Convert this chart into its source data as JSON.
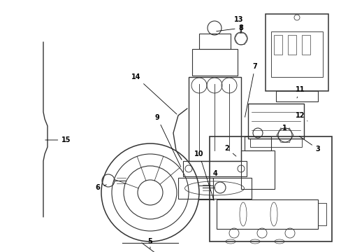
{
  "background_color": "#ffffff",
  "line_color": "#333333",
  "fig_width": 4.89,
  "fig_height": 3.6,
  "dpi": 100,
  "arrow_props": {
    "arrowstyle": "-",
    "color": "black",
    "lw": 0.7
  }
}
